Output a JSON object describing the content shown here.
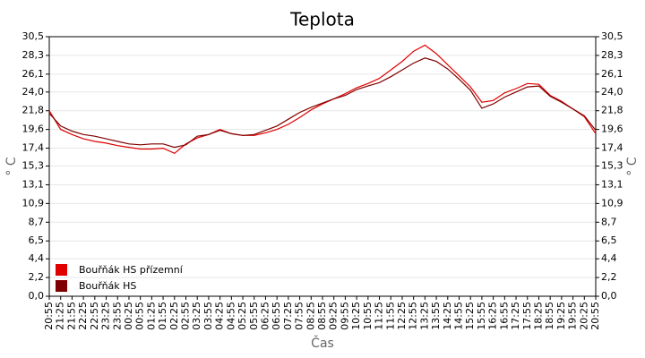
{
  "chart_data": {
    "type": "line",
    "title": "Teplota",
    "x_label": "Čas",
    "y_label": "° C",
    "categories": [
      "20:55",
      "21:25",
      "21:55",
      "22:25",
      "22:55",
      "23:25",
      "23:55",
      "00:25",
      "00:55",
      "01:25",
      "01:55",
      "02:25",
      "02:55",
      "03:25",
      "03:55",
      "04:25",
      "04:55",
      "05:25",
      "05:55",
      "06:25",
      "06:55",
      "07:25",
      "07:55",
      "08:25",
      "08:55",
      "09:25",
      "09:55",
      "10:25",
      "10:55",
      "11:25",
      "11:55",
      "12:25",
      "12:55",
      "13:25",
      "13:55",
      "14:25",
      "14:55",
      "15:25",
      "15:55",
      "16:25",
      "16:55",
      "17:25",
      "17:55",
      "18:25",
      "18:55",
      "19:25",
      "19:55",
      "20:25",
      "20:55"
    ],
    "series": [
      {
        "name": "Bouřňák HS přízemní",
        "color": "#e00000",
        "values": [
          21.8,
          19.6,
          19.0,
          18.5,
          18.2,
          18.0,
          17.7,
          17.5,
          17.3,
          17.3,
          17.4,
          16.8,
          17.9,
          18.6,
          19.0,
          19.6,
          19.1,
          18.9,
          18.9,
          19.2,
          19.6,
          20.2,
          21.0,
          21.9,
          22.6,
          23.2,
          23.8,
          24.5,
          25.0,
          25.6,
          26.6,
          27.6,
          28.8,
          29.5,
          28.5,
          27.2,
          25.9,
          24.6,
          22.8,
          23.0,
          23.9,
          24.4,
          25.0,
          24.9,
          23.6,
          22.9,
          22.0,
          21.1,
          19.1
        ]
      },
      {
        "name": "Bouřňák HS",
        "color": "#800000",
        "values": [
          21.5,
          20.0,
          19.4,
          19.0,
          18.8,
          18.5,
          18.2,
          17.9,
          17.8,
          17.9,
          17.9,
          17.5,
          17.8,
          18.8,
          19.0,
          19.5,
          19.1,
          18.9,
          19.0,
          19.5,
          20.0,
          20.8,
          21.6,
          22.2,
          22.7,
          23.2,
          23.6,
          24.3,
          24.7,
          25.1,
          25.8,
          26.6,
          27.4,
          28.0,
          27.6,
          26.7,
          25.5,
          24.2,
          22.1,
          22.6,
          23.4,
          24.0,
          24.6,
          24.7,
          23.5,
          22.8,
          22.0,
          21.2,
          19.5
        ]
      }
    ],
    "ylim": [
      0,
      30.5
    ],
    "yticks": [
      {
        "value": 0,
        "label": "0,0"
      },
      {
        "value": 2.2,
        "label": "2,2"
      },
      {
        "value": 4.4,
        "label": "4,4"
      },
      {
        "value": 6.5,
        "label": "6,5"
      },
      {
        "value": 8.7,
        "label": "8,7"
      },
      {
        "value": 10.9,
        "label": "10,9"
      },
      {
        "value": 13.1,
        "label": "13,1"
      },
      {
        "value": 15.3,
        "label": "15,3"
      },
      {
        "value": 17.4,
        "label": "17,4"
      },
      {
        "value": 19.6,
        "label": "19,6"
      },
      {
        "value": 21.8,
        "label": "21,8"
      },
      {
        "value": 24.0,
        "label": "24,0"
      },
      {
        "value": 26.1,
        "label": "26,1"
      },
      {
        "value": 28.3,
        "label": "28,3"
      },
      {
        "value": 30.5,
        "label": "30,5"
      }
    ],
    "grid": true,
    "legend": "lower left"
  }
}
